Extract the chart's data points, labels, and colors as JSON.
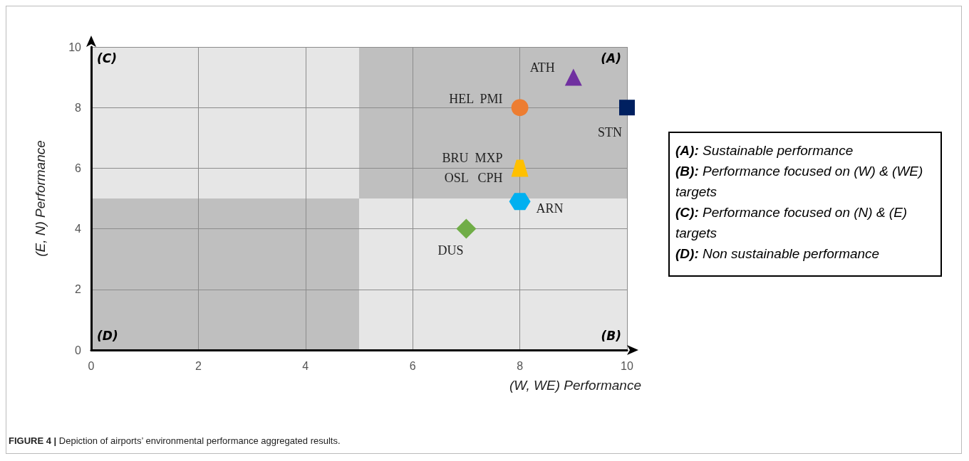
{
  "chart_data": {
    "type": "scatter",
    "xlabel": "(W, WE) Performance",
    "ylabel": "(E, N) Performance",
    "xlim": [
      0,
      10
    ],
    "xticks": [
      0,
      2,
      4,
      6,
      8,
      10
    ],
    "ylim": [
      0,
      10
    ],
    "yticks": [
      0,
      2,
      4,
      6,
      8,
      10
    ],
    "grid": true,
    "legend": false,
    "series": [
      {
        "name": "ATH",
        "color": "#7030a0",
        "marker": "triangle",
        "x": [
          9
        ],
        "values": [
          9
        ]
      },
      {
        "name": "HEL  PMI",
        "color": "#ed7d31",
        "marker": "circle",
        "x": [
          8
        ],
        "values": [
          8
        ]
      },
      {
        "name": "STN",
        "color": "#002060",
        "marker": "square",
        "x": [
          10
        ],
        "values": [
          8
        ]
      },
      {
        "name": "BRU  MXP\nOSL   CPH",
        "color": "#ffc000",
        "x": [
          8
        ],
        "values": [
          6
        ]
      },
      {
        "name": "ARN",
        "color": "#00b0f0",
        "x": [
          8
        ],
        "values": [
          4.9
        ]
      },
      {
        "name": "DUS",
        "color": "#70ad47",
        "marker": "diamond",
        "x": [
          7
        ],
        "values": [
          4
        ]
      }
    ],
    "annotations": [
      "(A)",
      "(B)",
      "(C)",
      "(D)",
      "(A): Sustainable performance",
      "(B): Performance focused on (W) & (WE) targets",
      "(C): Performance focused on (N) & (E) targets",
      "(D): Non sustainable performance",
      "FIGURE 4 | Depiction of airports’ environmental performance aggregated results."
    ]
  }
}
